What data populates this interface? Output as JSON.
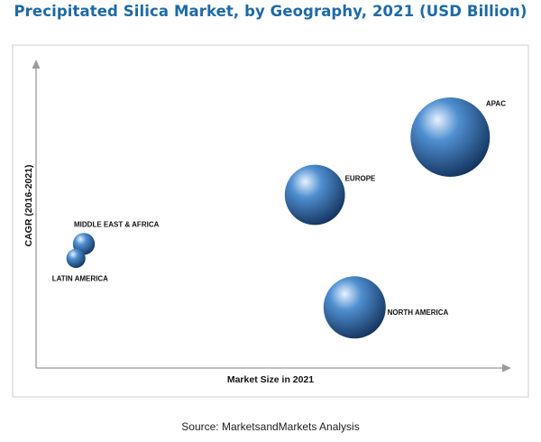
{
  "chart_data": {
    "type": "bubble",
    "title": "Precipitated Silica Market, by Geography, 2021 (USD Billion)",
    "xlabel": "Market Size in 2021",
    "ylabel": "CAGR (2016-2021)",
    "grid": false,
    "legend": "none",
    "axes_scale": "relative (no tick values shown)",
    "series": [
      {
        "name": "APAC",
        "market_size": 5.2,
        "cagr": 8.0,
        "bubble_size": 5.2
      },
      {
        "name": "EUROPE",
        "market_size": 3.5,
        "cagr": 6.0,
        "bubble_size": 3.0
      },
      {
        "name": "NORTH AMERICA",
        "market_size": 4.0,
        "cagr": 2.1,
        "bubble_size": 3.2
      },
      {
        "name": "MIDDLE EAST & AFRICA",
        "market_size": 0.6,
        "cagr": 4.3,
        "bubble_size": 0.4
      },
      {
        "name": "LATIN AMERICA",
        "market_size": 0.5,
        "cagr": 3.8,
        "bubble_size": 0.3
      }
    ],
    "colors": {
      "bubble_highlight": "#e8f3ff",
      "bubble_mid": "#4f8fd0",
      "bubble_dark": "#13325c",
      "axis": "#9a9a9a",
      "frame": "#cfcfcf",
      "title": "#1f6aa5"
    }
  },
  "source": "Source: MarketsandMarkets Analysis"
}
